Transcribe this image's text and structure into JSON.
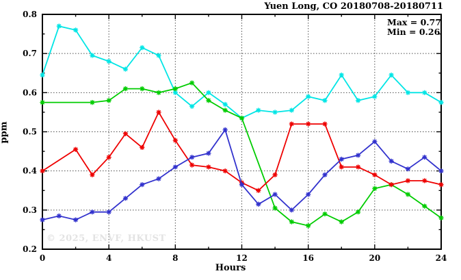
{
  "window": {
    "watermark": "© 2025, ENVF, HKUST"
  },
  "chart_data": {
    "type": "line",
    "title": "Yuen Long, CO 20180708-20180711",
    "xlabel": "Hours",
    "ylabel": "ppm",
    "annotations": {
      "max_label": "Max = 0.77",
      "min_label": "Min = 0.26"
    },
    "xlim": [
      0,
      24
    ],
    "ylim": [
      0.2,
      0.8
    ],
    "xticks": [
      0,
      4,
      8,
      12,
      16,
      20,
      24
    ],
    "yticks": [
      0.2,
      0.3,
      0.4,
      0.5,
      0.6,
      0.7,
      0.8
    ],
    "minor_xtick_step": 2,
    "minor_ytick_step": 0.05,
    "grid": true,
    "legend_position": "none",
    "marker": "asterisk",
    "series": [
      {
        "name": "series-cyan",
        "color": "#00e5e5",
        "points": [
          [
            0,
            0.645
          ],
          [
            1,
            0.77
          ],
          [
            2,
            0.76
          ],
          [
            3,
            0.695
          ],
          [
            4,
            0.68
          ],
          [
            5,
            0.66
          ],
          [
            6,
            0.715
          ],
          [
            7,
            0.695
          ],
          [
            8,
            0.6
          ],
          [
            9,
            0.565
          ],
          [
            10,
            0.6
          ],
          [
            11,
            0.57
          ],
          [
            12,
            0.535
          ],
          [
            13,
            0.555
          ],
          [
            14,
            0.55
          ],
          [
            15,
            0.555
          ],
          [
            16,
            0.59
          ],
          [
            17,
            0.58
          ],
          [
            18,
            0.645
          ],
          [
            19,
            0.58
          ],
          [
            20,
            0.59
          ],
          [
            21,
            0.645
          ],
          [
            22,
            0.6
          ],
          [
            23,
            0.6
          ],
          [
            24,
            0.575
          ]
        ]
      },
      {
        "name": "series-green",
        "color": "#00cc00",
        "points": [
          [
            0,
            0.575
          ],
          [
            3,
            0.575
          ],
          [
            4,
            0.58
          ],
          [
            5,
            0.61
          ],
          [
            6,
            0.61
          ],
          [
            7,
            0.6
          ],
          [
            8,
            0.61
          ],
          [
            9,
            0.625
          ],
          [
            10,
            0.58
          ],
          [
            11,
            0.555
          ],
          [
            12,
            0.535
          ],
          [
            14,
            0.305
          ],
          [
            15,
            0.27
          ],
          [
            16,
            0.26
          ],
          [
            17,
            0.29
          ],
          [
            18,
            0.27
          ],
          [
            19,
            0.295
          ],
          [
            20,
            0.355
          ],
          [
            21,
            0.365
          ],
          [
            22,
            0.34
          ],
          [
            23,
            0.31
          ],
          [
            24,
            0.28
          ]
        ]
      },
      {
        "name": "series-red",
        "color": "#ee0000",
        "points": [
          [
            0,
            0.4
          ],
          [
            2,
            0.455
          ],
          [
            3,
            0.39
          ],
          [
            4,
            0.435
          ],
          [
            5,
            0.495
          ],
          [
            6,
            0.46
          ],
          [
            7,
            0.55
          ],
          [
            8,
            0.478
          ],
          [
            9,
            0.415
          ],
          [
            10,
            0.41
          ],
          [
            11,
            0.4
          ],
          [
            12,
            0.37
          ],
          [
            13,
            0.35
          ],
          [
            14,
            0.39
          ],
          [
            15,
            0.52
          ],
          [
            16,
            0.52
          ],
          [
            17,
            0.52
          ],
          [
            18,
            0.41
          ],
          [
            19,
            0.41
          ],
          [
            20,
            0.39
          ],
          [
            21,
            0.365
          ],
          [
            22,
            0.375
          ],
          [
            23,
            0.375
          ],
          [
            24,
            0.365
          ]
        ]
      },
      {
        "name": "series-blue",
        "color": "#3232cd",
        "points": [
          [
            0,
            0.275
          ],
          [
            1,
            0.285
          ],
          [
            2,
            0.275
          ],
          [
            3,
            0.295
          ],
          [
            4,
            0.295
          ],
          [
            5,
            0.33
          ],
          [
            6,
            0.365
          ],
          [
            7,
            0.38
          ],
          [
            8,
            0.41
          ],
          [
            9,
            0.435
          ],
          [
            10,
            0.445
          ],
          [
            11,
            0.505
          ],
          [
            12,
            0.365
          ],
          [
            13,
            0.315
          ],
          [
            14,
            0.34
          ],
          [
            15,
            0.3
          ],
          [
            16,
            0.34
          ],
          [
            17,
            0.39
          ],
          [
            18,
            0.43
          ],
          [
            19,
            0.44
          ],
          [
            20,
            0.475
          ],
          [
            21,
            0.425
          ],
          [
            22,
            0.405
          ],
          [
            23,
            0.435
          ],
          [
            24,
            0.4
          ]
        ]
      }
    ]
  }
}
